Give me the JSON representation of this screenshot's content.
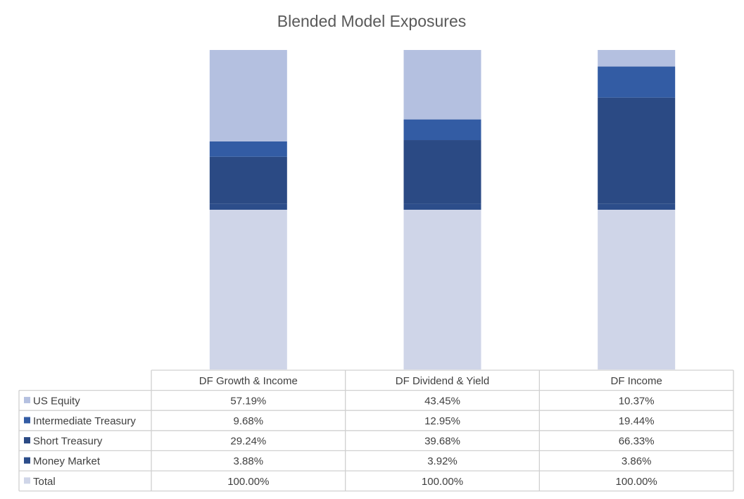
{
  "colors": {
    "us_equity": "#b4c0e0",
    "intermediate_treasury": "#335ca4",
    "short_treasury": "#2b4a84",
    "money_market": "#2c4d8a",
    "total": "#cfd5e8",
    "grid": "#d0d0d0",
    "text": "#404040",
    "title": "#595959"
  },
  "chart_data": {
    "type": "bar",
    "title": "Blended Model Exposures",
    "categories": [
      "DF Growth & Income",
      "DF Dividend & Yield",
      "DF Income"
    ],
    "series": [
      {
        "name": "US Equity",
        "values": [
          57.19,
          43.45,
          10.37
        ],
        "labels": [
          "57.19%",
          "43.45%",
          "10.37%"
        ],
        "color_key": "us_equity"
      },
      {
        "name": "Intermediate Treasury",
        "values": [
          9.68,
          12.95,
          19.44
        ],
        "labels": [
          "9.68%",
          "12.95%",
          "19.44%"
        ],
        "color_key": "intermediate_treasury"
      },
      {
        "name": "Short Treasury",
        "values": [
          29.24,
          39.68,
          66.33
        ],
        "labels": [
          "29.24%",
          "39.68%",
          "66.33%"
        ],
        "color_key": "short_treasury"
      },
      {
        "name": "Money Market",
        "values": [
          3.88,
          3.92,
          3.86
        ],
        "labels": [
          "3.88%",
          "3.92%",
          "3.86%"
        ],
        "color_key": "money_market"
      },
      {
        "name": "Total",
        "values": [
          100.0,
          100.0,
          100.0
        ],
        "labels": [
          "100.00%",
          "100.00%",
          "100.00%"
        ],
        "color_key": "total"
      }
    ],
    "stacked": true,
    "legend": "data-table",
    "grid": false
  }
}
